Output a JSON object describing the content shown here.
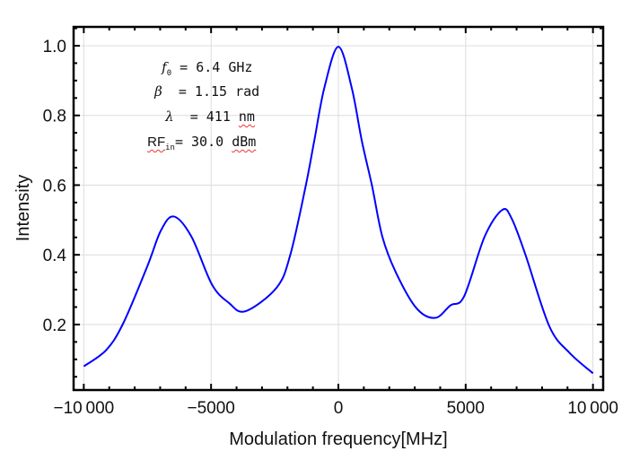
{
  "chart_data": {
    "type": "line",
    "title": "",
    "xlabel": "Modulation frequency[MHz]",
    "ylabel": "Intensity",
    "xlim": [
      -10400,
      10400
    ],
    "ylim": [
      0.012,
      1.054
    ],
    "grid": true,
    "x_ticks": [
      -10000,
      -5000,
      0,
      5000,
      10000
    ],
    "x_tick_labels": [
      "−10 000",
      "−5000",
      "0",
      "5000",
      "10 000"
    ],
    "y_ticks": [
      0.2,
      0.4,
      0.6,
      0.8,
      1.0
    ],
    "y_tick_labels": [
      "0.2",
      "0.4",
      "0.6",
      "0.8",
      "1.0"
    ],
    "series": [
      {
        "color": "#0000ff",
        "x": [
          -10000,
          -9116,
          -8447,
          -7510,
          -6975,
          -6466,
          -5770,
          -4967,
          -4300,
          -3655,
          -2423,
          -1888,
          -1285,
          -950,
          -549,
          0,
          522,
          924,
          1325,
          1727,
          2262,
          3066,
          3802,
          4404,
          4940,
          5743,
          6439,
          6814,
          7349,
          8286,
          9090,
          10000
        ],
        "y": [
          0.08,
          0.127,
          0.204,
          0.366,
          0.469,
          0.51,
          0.452,
          0.315,
          0.262,
          0.238,
          0.306,
          0.4,
          0.597,
          0.726,
          0.88,
          0.997,
          0.88,
          0.726,
          0.597,
          0.452,
          0.349,
          0.247,
          0.219,
          0.255,
          0.281,
          0.452,
          0.529,
          0.503,
          0.4,
          0.195,
          0.118,
          0.06
        ]
      }
    ],
    "annotations": {
      "f0_symbol": "f",
      "f0_sub": "0",
      "f0_value": "= 6.4 GHz",
      "beta_symbol": "β",
      "beta_value": "= 1.15",
      "beta_unit": "rad",
      "lambda_symbol": "λ",
      "lambda_value": "= 411",
      "lambda_unit": "nm",
      "rf_symbol": "RF",
      "rf_sub": "in",
      "rf_value": "= 30.0",
      "rf_unit": "dBm"
    }
  }
}
